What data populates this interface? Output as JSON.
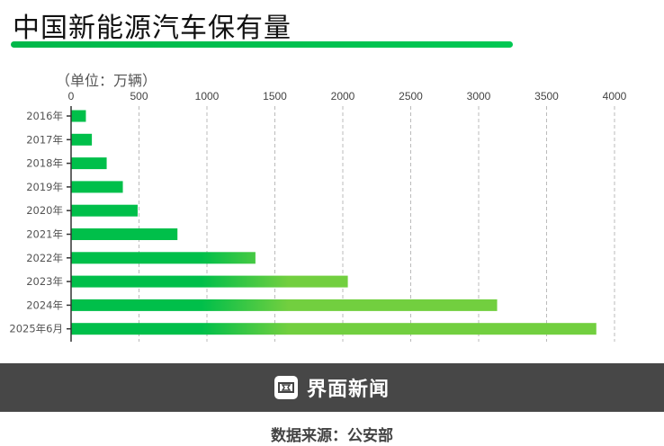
{
  "header": {
    "title": "中国新能源汽车保有量"
  },
  "chart_data": {
    "type": "bar",
    "orientation": "horizontal",
    "title": "中国新能源汽车保有量",
    "unit_label": "（单位：万辆）",
    "categories": [
      "2016年",
      "2017年",
      "2018年",
      "2019年",
      "2020年",
      "2021年",
      "2022年",
      "2023年",
      "2024年",
      "2025年6月"
    ],
    "values": [
      109,
      153,
      262,
      381,
      490,
      783,
      1357,
      2037,
      3136,
      3866
    ],
    "xlim": [
      0,
      4000
    ],
    "xticks": [
      "0",
      "500",
      "1000",
      "1500",
      "2000",
      "2500",
      "3000",
      "3500",
      "4000"
    ],
    "grid": true,
    "colors": {
      "bar_start": "#00bf4a",
      "bar_end": "#72cf3f"
    }
  },
  "footer": {
    "brand": "界面新闻",
    "source": "数据来源：公安部"
  }
}
